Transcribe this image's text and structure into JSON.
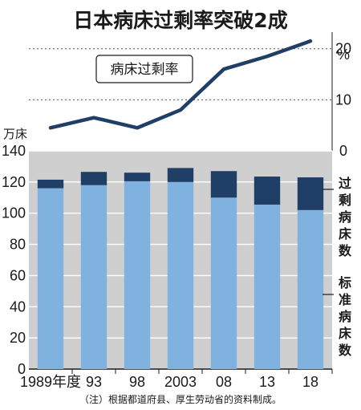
{
  "chart_data": [
    {
      "type": "line",
      "title": "日本病床过剩率突破2成",
      "series": [
        {
          "name": "病床过剩率",
          "values": [
            4.5,
            6.5,
            4.5,
            8,
            16,
            18.5,
            21.5
          ]
        }
      ],
      "y_unit": "%",
      "y_ticks": [
        0,
        10,
        20
      ],
      "ylim": [
        0,
        22
      ],
      "grid": "dotted lines at 10 and 20"
    },
    {
      "type": "bar",
      "stacked": true,
      "categories": [
        "1989年度",
        "93",
        "98",
        "2003",
        "08",
        "13",
        "18"
      ],
      "y_unit": "万床",
      "y_ticks": [
        0,
        20,
        40,
        60,
        80,
        100,
        120,
        140
      ],
      "ylim": [
        0,
        140
      ],
      "series": [
        {
          "name": "标准病床数",
          "values": [
            116,
            118,
            120.5,
            120,
            110,
            105.5,
            102
          ],
          "color": "#7fb2de"
        },
        {
          "name": "过剩病床数",
          "values": [
            5.5,
            8.5,
            5.5,
            9,
            17,
            18,
            21
          ],
          "color": "#1f3f66"
        }
      ],
      "grid": "horizontal gridlines every 20"
    }
  ],
  "labels": {
    "side_excess": [
      "过",
      "剩",
      "病",
      "床",
      "数"
    ],
    "side_standard": [
      "标",
      "准",
      "病",
      "床",
      "数"
    ],
    "note": "（注）根据都道府县、厚生劳动省的资料制成。"
  },
  "colors": {
    "line": "#1f3f66",
    "standard": "#7fb2de",
    "excess": "#1f3f66",
    "panel_bg": "#cfcfcf"
  }
}
